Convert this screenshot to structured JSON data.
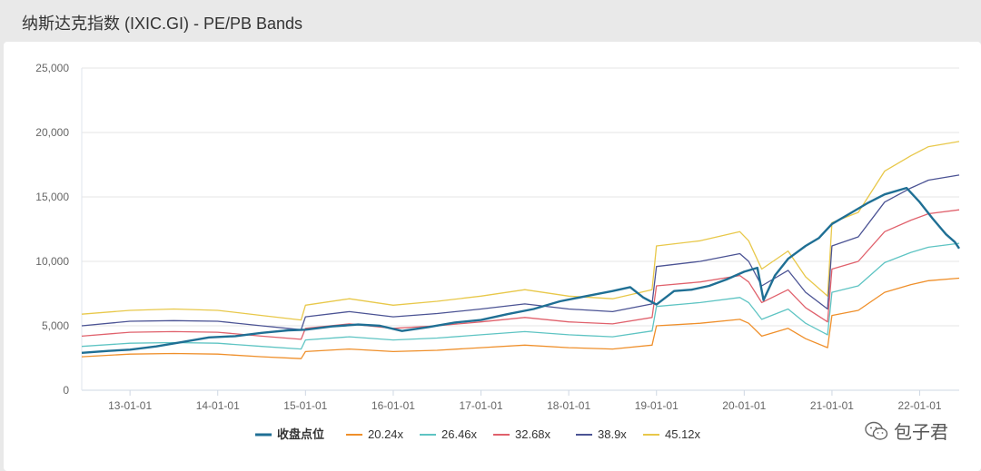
{
  "page": {
    "title": "纳斯达克指数 (IXIC.GI) - PE/PB Bands"
  },
  "watermark": {
    "text": "包子君"
  },
  "chart_data": {
    "type": "line",
    "title": "纳斯达克指数 (IXIC.GI) - PE/PB Bands",
    "ylim": [
      0,
      25000
    ],
    "yticks": [
      0,
      5000,
      10000,
      15000,
      20000,
      25000
    ],
    "ytick_labels": [
      "0",
      "5,000",
      "10,000",
      "15,000",
      "20,000",
      "25,000"
    ],
    "xlim": [
      2012.45,
      2022.45
    ],
    "xticks": [
      2013,
      2014,
      2015,
      2016,
      2017,
      2018,
      2019,
      2020,
      2021,
      2022
    ],
    "xtick_labels": [
      "13-01-01",
      "14-01-01",
      "15-01-01",
      "16-01-01",
      "17-01-01",
      "18-01-01",
      "19-01-01",
      "20-01-01",
      "21-01-01",
      "22-01-01"
    ],
    "grid": true,
    "legend_position": "bottom",
    "series": [
      {
        "name": "收盘点位",
        "color": "#1f6f94",
        "bold": true,
        "x": [
          2012.45,
          2012.75,
          2013.0,
          2013.3,
          2013.6,
          2013.9,
          2014.2,
          2014.5,
          2014.8,
          2015.0,
          2015.3,
          2015.6,
          2015.85,
          2016.1,
          2016.4,
          2016.7,
          2017.0,
          2017.3,
          2017.6,
          2017.9,
          2018.2,
          2018.5,
          2018.7,
          2018.85,
          2019.0,
          2019.2,
          2019.4,
          2019.6,
          2019.8,
          2020.0,
          2020.15,
          2020.22,
          2020.35,
          2020.5,
          2020.7,
          2020.85,
          2021.0,
          2021.2,
          2021.4,
          2021.6,
          2021.85,
          2022.0,
          2022.15,
          2022.3,
          2022.4,
          2022.45
        ],
        "y": [
          2900,
          3050,
          3150,
          3400,
          3750,
          4100,
          4200,
          4450,
          4650,
          4700,
          4950,
          5100,
          5000,
          4600,
          4900,
          5250,
          5450,
          5900,
          6300,
          6900,
          7300,
          7700,
          8000,
          7200,
          6650,
          7700,
          7800,
          8100,
          8600,
          9200,
          9500,
          7000,
          8900,
          10200,
          11200,
          11800,
          12900,
          13700,
          14500,
          15200,
          15700,
          14600,
          13300,
          12100,
          11500,
          11000
        ]
      },
      {
        "name": "20.24x",
        "color": "#ef8f2a",
        "x": [
          2012.45,
          2013.0,
          2013.5,
          2014.0,
          2014.5,
          2014.95,
          2015.0,
          2015.5,
          2016.0,
          2016.5,
          2017.0,
          2017.5,
          2018.0,
          2018.5,
          2018.95,
          2019.0,
          2019.5,
          2019.95,
          2020.05,
          2020.2,
          2020.5,
          2020.7,
          2020.95,
          2021.0,
          2021.3,
          2021.6,
          2021.9,
          2022.1,
          2022.45
        ],
        "y": [
          2600,
          2800,
          2850,
          2800,
          2600,
          2450,
          3000,
          3200,
          3000,
          3100,
          3300,
          3500,
          3300,
          3200,
          3500,
          5000,
          5200,
          5500,
          5200,
          4200,
          4800,
          4000,
          3300,
          5800,
          6200,
          7600,
          8200,
          8500,
          8700
        ]
      },
      {
        "name": "26.46x",
        "color": "#5ec4c3",
        "x": [
          2012.45,
          2013.0,
          2013.5,
          2014.0,
          2014.5,
          2014.95,
          2015.0,
          2015.5,
          2016.0,
          2016.5,
          2017.0,
          2017.5,
          2018.0,
          2018.5,
          2018.95,
          2019.0,
          2019.5,
          2019.95,
          2020.05,
          2020.2,
          2020.5,
          2020.7,
          2020.95,
          2021.0,
          2021.3,
          2021.6,
          2021.9,
          2022.1,
          2022.45
        ],
        "y": [
          3400,
          3650,
          3700,
          3650,
          3400,
          3200,
          3900,
          4150,
          3900,
          4050,
          4300,
          4550,
          4300,
          4150,
          4600,
          6500,
          6800,
          7200,
          6800,
          5500,
          6300,
          5200,
          4300,
          7600,
          8100,
          9900,
          10700,
          11100,
          11400
        ]
      },
      {
        "name": "32.68x",
        "color": "#e0616c",
        "x": [
          2012.45,
          2013.0,
          2013.5,
          2014.0,
          2014.5,
          2014.95,
          2015.0,
          2015.5,
          2016.0,
          2016.5,
          2017.0,
          2017.5,
          2018.0,
          2018.5,
          2018.95,
          2019.0,
          2019.5,
          2019.95,
          2020.05,
          2020.2,
          2020.5,
          2020.7,
          2020.95,
          2021.0,
          2021.3,
          2021.6,
          2021.9,
          2022.1,
          2022.45
        ],
        "y": [
          4200,
          4500,
          4550,
          4500,
          4200,
          3950,
          4800,
          5150,
          4800,
          5000,
          5300,
          5650,
          5300,
          5150,
          5650,
          8100,
          8400,
          8900,
          8400,
          6800,
          7800,
          6400,
          5300,
          9400,
          10000,
          12300,
          13200,
          13700,
          14000
        ]
      },
      {
        "name": "38.9x",
        "color": "#4b5394",
        "x": [
          2012.45,
          2013.0,
          2013.5,
          2014.0,
          2014.5,
          2014.95,
          2015.0,
          2015.5,
          2016.0,
          2016.5,
          2017.0,
          2017.5,
          2018.0,
          2018.5,
          2018.95,
          2019.0,
          2019.5,
          2019.95,
          2020.05,
          2020.2,
          2020.5,
          2020.7,
          2020.95,
          2021.0,
          2021.3,
          2021.6,
          2021.9,
          2022.1,
          2022.45
        ],
        "y": [
          5000,
          5350,
          5400,
          5350,
          5000,
          4700,
          5700,
          6100,
          5700,
          5950,
          6300,
          6700,
          6300,
          6100,
          6700,
          9600,
          10000,
          10600,
          10000,
          8100,
          9300,
          7600,
          6300,
          11200,
          11900,
          14600,
          15700,
          16300,
          16700
        ]
      },
      {
        "name": "45.12x",
        "color": "#e8c84a",
        "x": [
          2012.45,
          2013.0,
          2013.5,
          2014.0,
          2014.5,
          2014.95,
          2015.0,
          2015.5,
          2016.0,
          2016.5,
          2017.0,
          2017.5,
          2018.0,
          2018.5,
          2018.95,
          2019.0,
          2019.5,
          2019.95,
          2020.05,
          2020.2,
          2020.5,
          2020.7,
          2020.95,
          2021.0,
          2021.3,
          2021.6,
          2021.9,
          2022.1,
          2022.45
        ],
        "y": [
          5900,
          6200,
          6300,
          6200,
          5800,
          5450,
          6600,
          7100,
          6600,
          6900,
          7300,
          7800,
          7300,
          7100,
          7800,
          11200,
          11600,
          12300,
          11600,
          9400,
          10800,
          8800,
          7300,
          13000,
          13800,
          17000,
          18200,
          18900,
          19300
        ]
      }
    ]
  }
}
